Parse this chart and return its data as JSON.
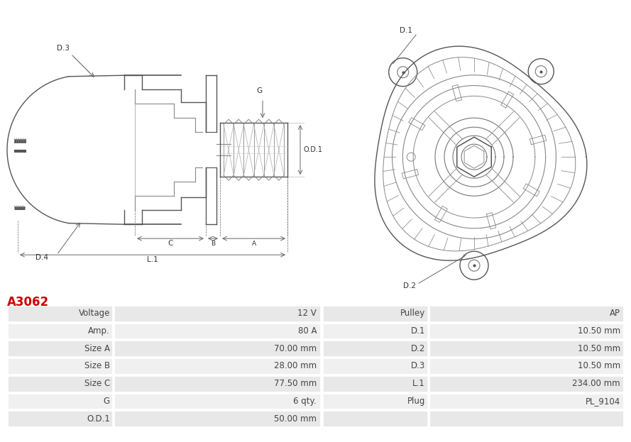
{
  "title": "A3062",
  "title_color": "#cc0000",
  "bg_color": "#ffffff",
  "table_row_bg_odd": "#e8e8e8",
  "table_row_bg_even": "#f0f0f0",
  "table_border_color": "#ffffff",
  "line_color": "#555555",
  "dim_color": "#666666",
  "label_color": "#333333",
  "left_col_data": [
    [
      "Voltage",
      "12 V"
    ],
    [
      "Amp.",
      "80 A"
    ],
    [
      "Size A",
      "70.00 mm"
    ],
    [
      "Size B",
      "28.00 mm"
    ],
    [
      "Size C",
      "77.50 mm"
    ],
    [
      "G",
      "6 qty."
    ],
    [
      "O.D.1",
      "50.00 mm"
    ]
  ],
  "right_col_data": [
    [
      "Pulley",
      "AP"
    ],
    [
      "D.1",
      "10.50 mm"
    ],
    [
      "D.2",
      "10.50 mm"
    ],
    [
      "D.3",
      "10.50 mm"
    ],
    [
      "L.1",
      "234.00 mm"
    ],
    [
      "Plug",
      "PL_9104"
    ],
    [
      "",
      ""
    ]
  ]
}
